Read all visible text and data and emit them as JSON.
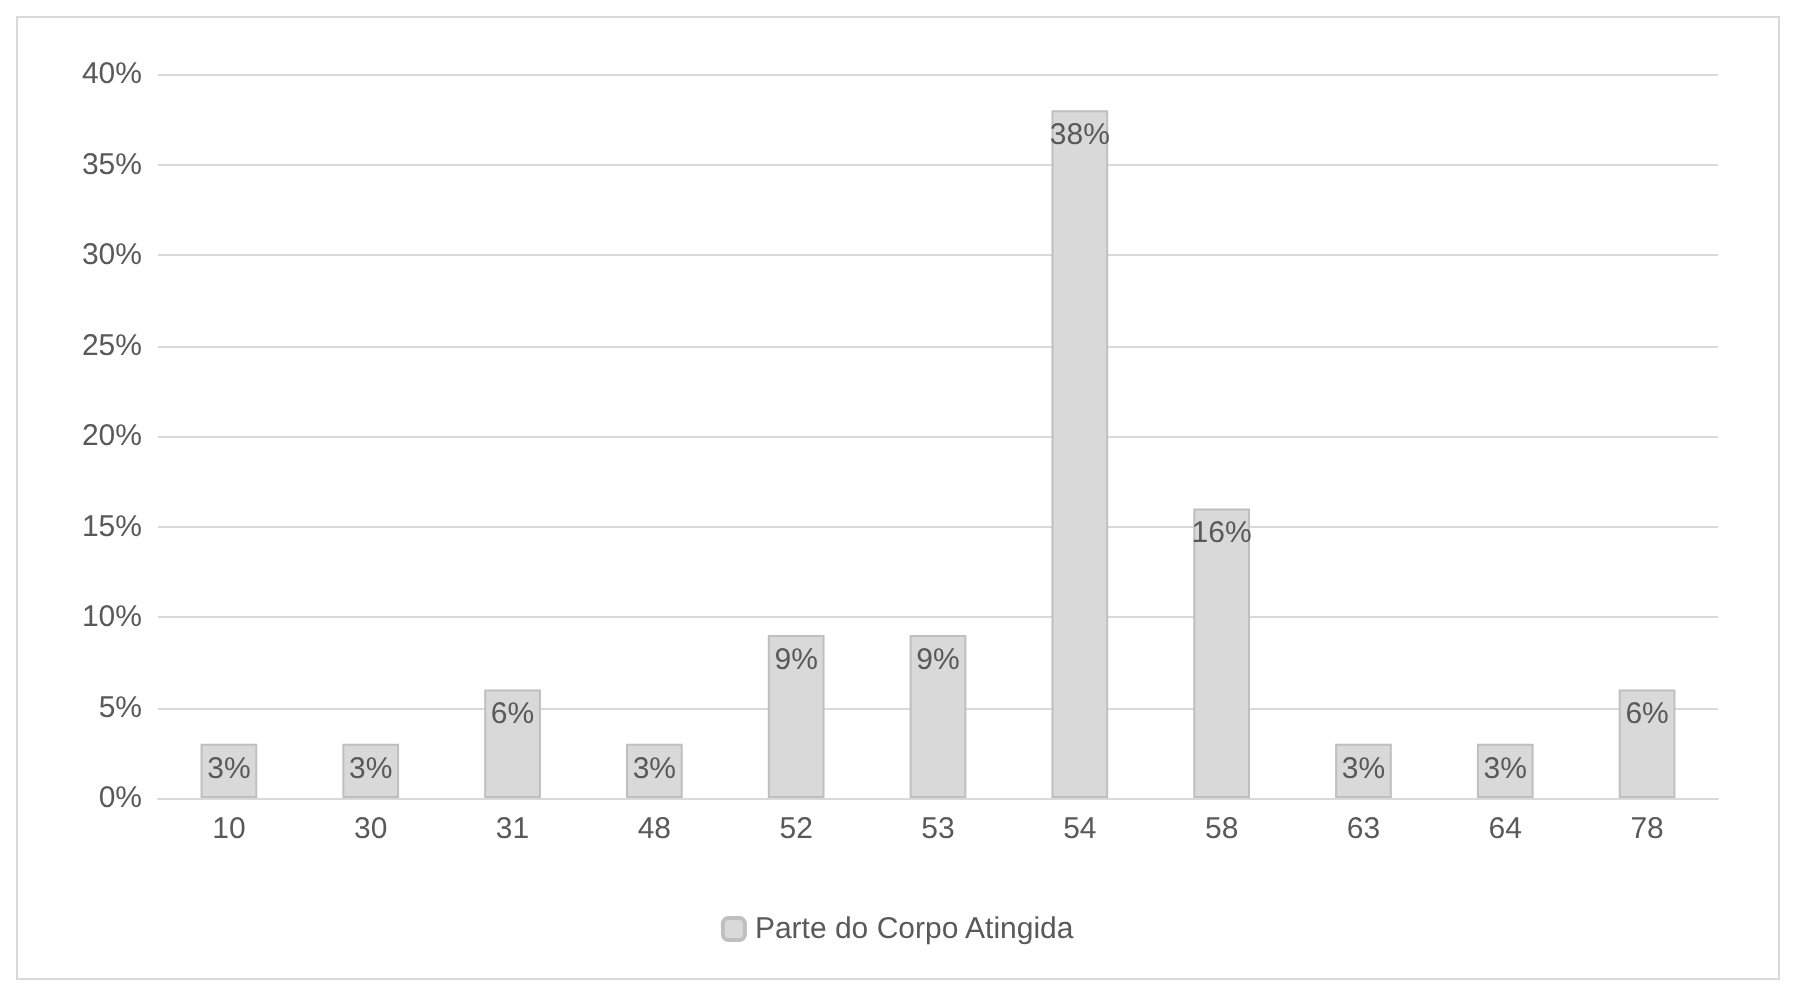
{
  "chart_data": {
    "type": "bar",
    "categories": [
      "10",
      "30",
      "31",
      "48",
      "52",
      "53",
      "54",
      "58",
      "63",
      "64",
      "78"
    ],
    "series": [
      {
        "name": "Parte do Corpo Atingida",
        "color": "#d9d9d9",
        "values": [
          3,
          3,
          6,
          3,
          9,
          9,
          38,
          16,
          3,
          3,
          6
        ],
        "value_labels": [
          "3%",
          "3%",
          "6%",
          "3%",
          "9%",
          "9%",
          "38%",
          "16%",
          "3%",
          "3%",
          "6%"
        ]
      }
    ],
    "ylim": [
      0,
      40
    ],
    "yticks": [
      {
        "value": 0,
        "label": "0%"
      },
      {
        "value": 5,
        "label": "5%"
      },
      {
        "value": 10,
        "label": "10%"
      },
      {
        "value": 15,
        "label": "15%"
      },
      {
        "value": 20,
        "label": "20%"
      },
      {
        "value": 25,
        "label": "25%"
      },
      {
        "value": 30,
        "label": "30%"
      },
      {
        "value": 35,
        "label": "35%"
      },
      {
        "value": 40,
        "label": "40%"
      }
    ],
    "grid": "y",
    "legend": "bottom"
  }
}
